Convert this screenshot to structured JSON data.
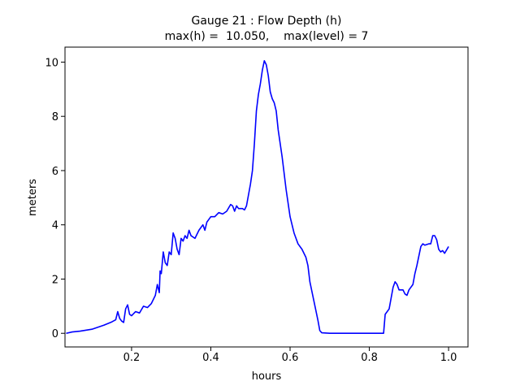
{
  "chart_data": {
    "type": "line",
    "title": "Gauge 21 : Flow Depth (h)",
    "subtitle": "max(h) =  10.050,    max(level) = 7",
    "xlabel": "hours",
    "ylabel": "meters",
    "x": [
      0.035,
      0.05,
      0.07,
      0.1,
      0.13,
      0.15,
      0.16,
      0.165,
      0.17,
      0.175,
      0.18,
      0.185,
      0.19,
      0.195,
      0.2,
      0.21,
      0.22,
      0.23,
      0.24,
      0.25,
      0.26,
      0.265,
      0.27,
      0.272,
      0.275,
      0.28,
      0.285,
      0.29,
      0.295,
      0.3,
      0.305,
      0.31,
      0.315,
      0.32,
      0.325,
      0.33,
      0.335,
      0.34,
      0.345,
      0.35,
      0.36,
      0.37,
      0.38,
      0.385,
      0.39,
      0.4,
      0.41,
      0.42,
      0.43,
      0.44,
      0.45,
      0.455,
      0.46,
      0.465,
      0.47,
      0.48,
      0.485,
      0.49,
      0.5,
      0.505,
      0.51,
      0.515,
      0.52,
      0.525,
      0.53,
      0.535,
      0.54,
      0.545,
      0.55,
      0.555,
      0.56,
      0.565,
      0.57,
      0.58,
      0.59,
      0.6,
      0.61,
      0.62,
      0.63,
      0.64,
      0.645,
      0.65,
      0.66,
      0.67,
      0.675,
      0.68,
      0.7,
      0.8,
      0.836,
      0.84,
      0.85,
      0.855,
      0.86,
      0.865,
      0.87,
      0.875,
      0.885,
      0.89,
      0.895,
      0.9,
      0.91,
      0.915,
      0.92,
      0.93,
      0.935,
      0.94,
      0.95,
      0.955,
      0.96,
      0.965,
      0.97,
      0.975,
      0.98,
      0.985,
      0.99,
      1.0
    ],
    "series": [
      {
        "color": "#0000ff",
        "values": [
          0.0,
          0.05,
          0.08,
          0.15,
          0.3,
          0.42,
          0.5,
          0.8,
          0.55,
          0.45,
          0.4,
          0.9,
          1.05,
          0.7,
          0.65,
          0.8,
          0.75,
          1.0,
          0.95,
          1.1,
          1.4,
          1.8,
          1.5,
          2.3,
          2.2,
          3.0,
          2.6,
          2.5,
          3.0,
          2.9,
          3.7,
          3.5,
          3.1,
          2.9,
          3.5,
          3.4,
          3.6,
          3.5,
          3.8,
          3.6,
          3.5,
          3.8,
          4.0,
          3.8,
          4.1,
          4.3,
          4.3,
          4.45,
          4.4,
          4.5,
          4.75,
          4.7,
          4.5,
          4.7,
          4.6,
          4.6,
          4.55,
          4.7,
          5.5,
          6.0,
          7.0,
          8.2,
          8.8,
          9.2,
          9.7,
          10.05,
          9.9,
          9.5,
          8.9,
          8.65,
          8.5,
          8.2,
          7.5,
          6.5,
          5.3,
          4.3,
          3.7,
          3.3,
          3.1,
          2.8,
          2.5,
          1.9,
          1.2,
          0.5,
          0.1,
          0.02,
          0,
          0,
          0,
          0.7,
          0.9,
          1.3,
          1.7,
          1.9,
          1.8,
          1.6,
          1.6,
          1.45,
          1.4,
          1.6,
          1.8,
          2.2,
          2.5,
          3.2,
          3.3,
          3.25,
          3.3,
          3.3,
          3.6,
          3.6,
          3.45,
          3.1,
          3.0,
          3.05,
          2.95,
          3.2
        ]
      }
    ],
    "xlim": [
      0.032,
      1.049
    ],
    "ylim": [
      -0.5025,
      10.5525
    ],
    "xticks": [
      0.2,
      0.4,
      0.6,
      0.8,
      {
        "value": 1,
        "label": "1.0"
      }
    ],
    "yticks": [
      0,
      2,
      4,
      6,
      8,
      10
    ]
  }
}
